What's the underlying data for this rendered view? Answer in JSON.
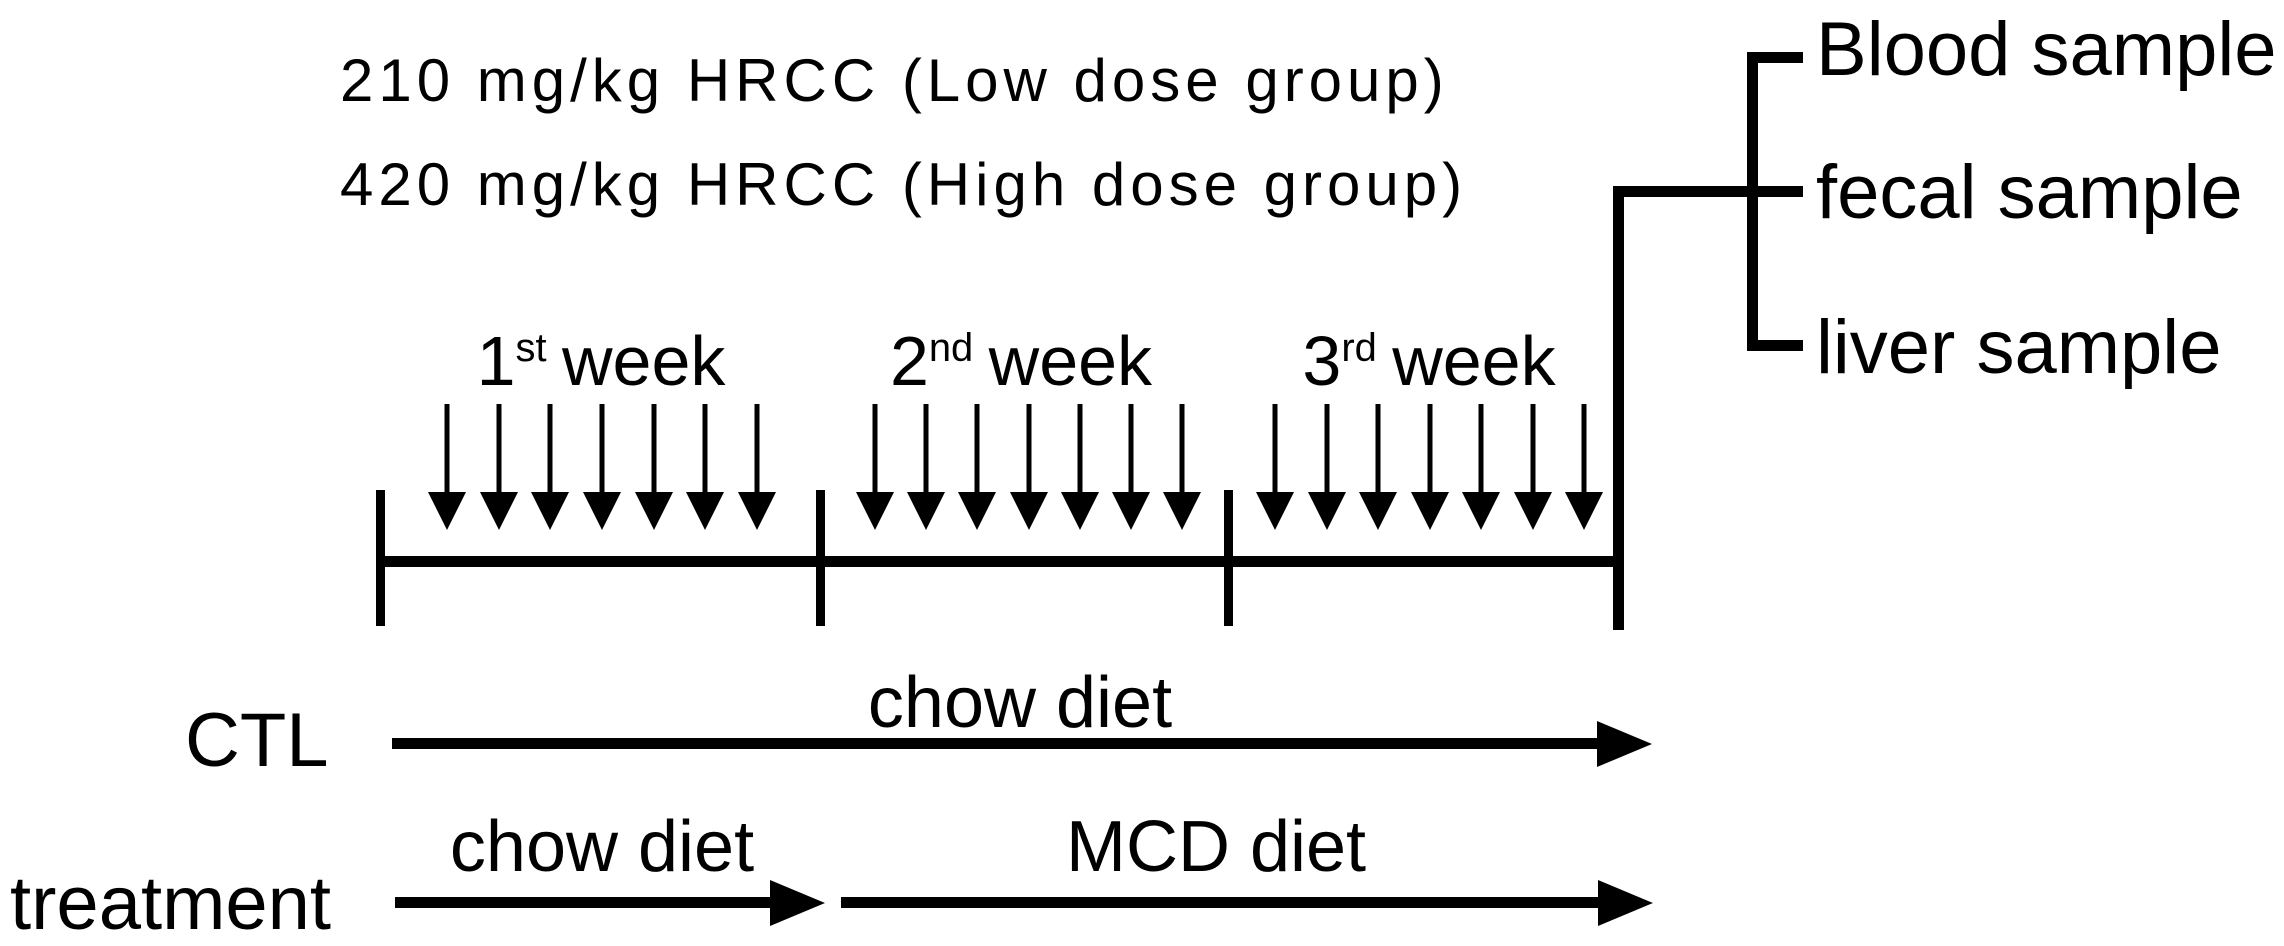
{
  "diagram": {
    "dose_lines": [
      "210 mg/kg HRCC (Low dose group)",
      "420 mg/kg HRCC (High dose group)"
    ],
    "weeks": [
      {
        "ordinal": "1",
        "suffix": "st",
        "word": "week",
        "daily_doses": 7
      },
      {
        "ordinal": "2",
        "suffix": "nd",
        "word": "week",
        "daily_doses": 7
      },
      {
        "ordinal": "3",
        "suffix": "rd",
        "word": "week",
        "daily_doses": 7
      }
    ],
    "samples": [
      {
        "label": "Blood sample"
      },
      {
        "label": "fecal sample"
      },
      {
        "label": "liver sample"
      }
    ],
    "rows": [
      {
        "group": "CTL",
        "diets": [
          "chow diet"
        ]
      },
      {
        "group": "treatment",
        "diets": [
          "chow diet",
          "MCD diet"
        ]
      }
    ],
    "colors": {
      "ink": "#000000",
      "background": "#ffffff"
    }
  }
}
